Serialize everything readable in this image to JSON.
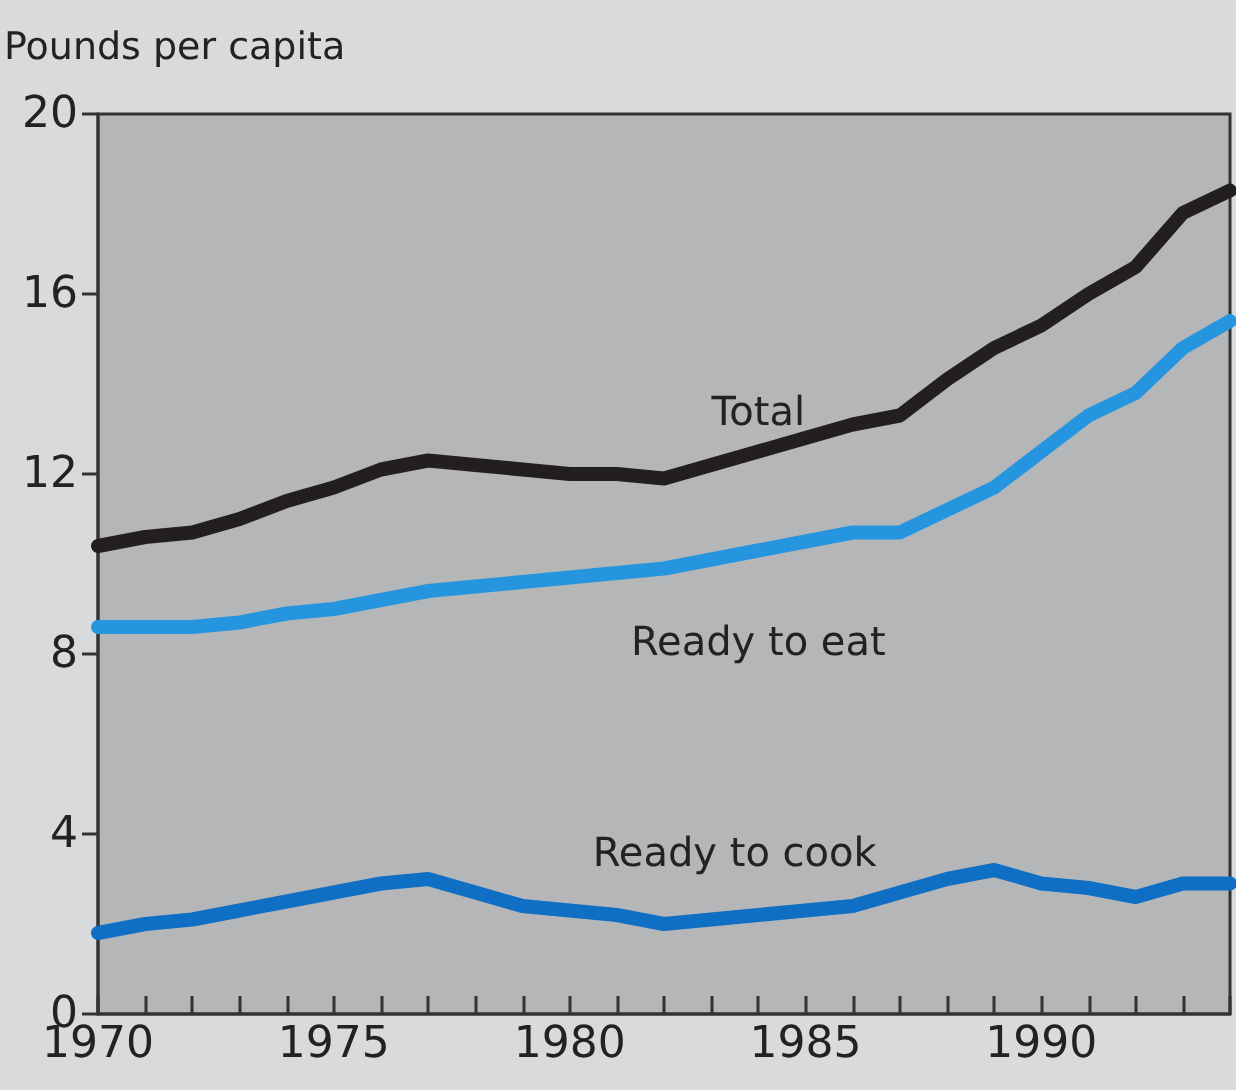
{
  "chart_data": {
    "type": "line",
    "ylabel": "Pounds per capita",
    "x": [
      1970,
      1971,
      1972,
      1973,
      1974,
      1975,
      1976,
      1977,
      1978,
      1979,
      1980,
      1981,
      1982,
      1983,
      1984,
      1985,
      1986,
      1987,
      1988,
      1989,
      1990,
      1991,
      1992,
      1993,
      1994
    ],
    "series": [
      {
        "name": "Total",
        "color": "#231f20",
        "values": [
          10.4,
          10.6,
          10.7,
          11.0,
          11.4,
          11.7,
          12.1,
          12.3,
          12.2,
          12.1,
          12.0,
          12.0,
          11.9,
          12.2,
          12.5,
          12.8,
          13.1,
          13.3,
          14.1,
          14.8,
          15.3,
          16.0,
          16.6,
          17.8,
          18.3
        ]
      },
      {
        "name": "Ready to eat",
        "color": "#2595e0",
        "values": [
          8.6,
          8.6,
          8.6,
          8.7,
          8.9,
          9.0,
          9.2,
          9.4,
          9.5,
          9.6,
          9.7,
          9.8,
          9.9,
          10.1,
          10.3,
          10.5,
          10.7,
          10.7,
          11.2,
          11.7,
          12.5,
          13.3,
          13.8,
          14.8,
          15.4
        ]
      },
      {
        "name": "Ready to cook",
        "color": "#0f6fc4",
        "values": [
          1.8,
          2.0,
          2.1,
          2.3,
          2.5,
          2.7,
          2.9,
          3.0,
          2.7,
          2.4,
          2.3,
          2.2,
          2.0,
          2.1,
          2.2,
          2.3,
          2.4,
          2.7,
          3.0,
          3.2,
          2.9,
          2.8,
          2.6,
          2.9,
          2.9
        ]
      }
    ],
    "xlim": [
      1970,
      1994
    ],
    "xticks": [
      1970,
      {
        "value": 1971,
        "label": null
      },
      {
        "value": 1972,
        "label": null
      },
      {
        "value": 1973,
        "label": null
      },
      {
        "value": 1974,
        "label": null
      },
      1975,
      {
        "value": 1976,
        "label": null
      },
      {
        "value": 1977,
        "label": null
      },
      {
        "value": 1978,
        "label": null
      },
      {
        "value": 1979,
        "label": null
      },
      1980,
      {
        "value": 1981,
        "label": null
      },
      {
        "value": 1982,
        "label": null
      },
      {
        "value": 1983,
        "label": null
      },
      {
        "value": 1984,
        "label": null
      },
      1985,
      {
        "value": 1986,
        "label": null
      },
      {
        "value": 1987,
        "label": null
      },
      {
        "value": 1988,
        "label": null
      },
      {
        "value": 1989,
        "label": null
      },
      1990,
      {
        "value": 1991,
        "label": null
      },
      {
        "value": 1992,
        "label": null
      },
      {
        "value": 1993,
        "label": null
      },
      {
        "value": 1994,
        "label": null
      }
    ],
    "ylim": [
      0,
      20
    ],
    "yticks": [
      0,
      4,
      8,
      12,
      16,
      20
    ],
    "grid": false,
    "legend": false,
    "line_style": "solid"
  }
}
